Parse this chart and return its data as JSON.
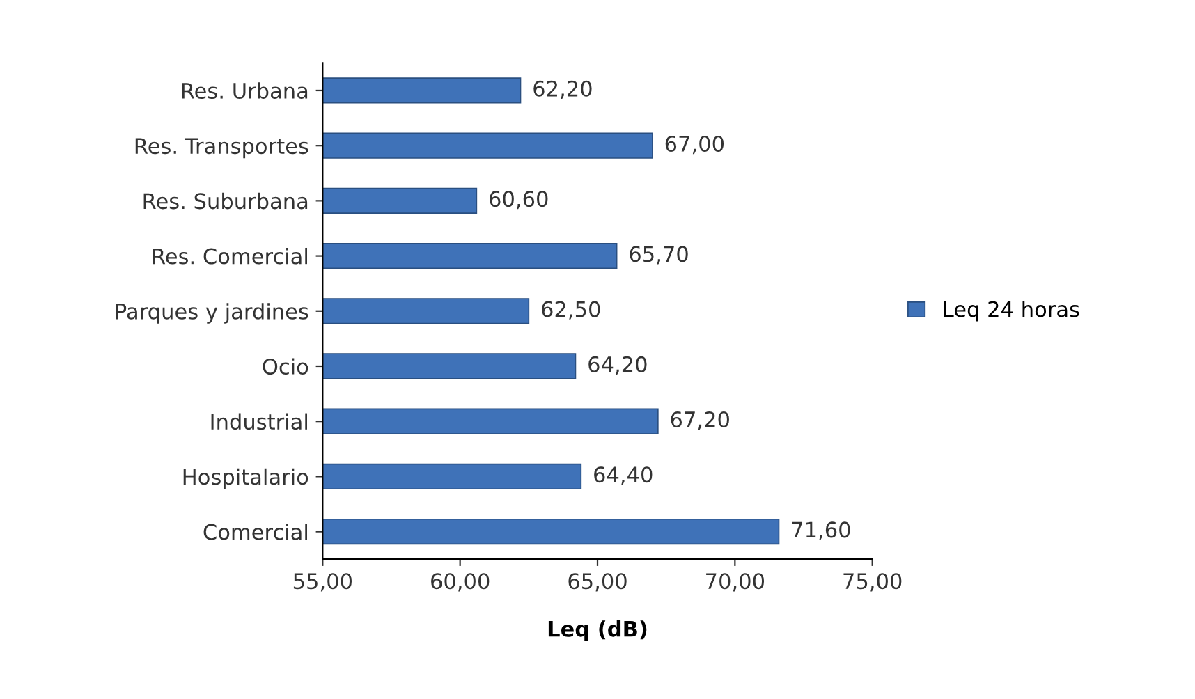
{
  "chart_data": {
    "type": "bar",
    "orientation": "horizontal",
    "xlabel": "Leq (dB)",
    "categories": [
      "Res. Urbana",
      "Res. Transportes",
      "Res. Suburbana",
      "Res. Comercial",
      "Parques y jardines",
      "Ocio",
      "Industrial",
      "Hospitalario",
      "Comercial"
    ],
    "series": [
      {
        "name": "Leq 24 horas",
        "color": "#3f72b8",
        "values": [
          62.2,
          67.0,
          60.6,
          65.7,
          62.5,
          64.2,
          67.2,
          64.4,
          71.6
        ],
        "value_labels": [
          "62,20",
          "67,00",
          "60,60",
          "65,70",
          "62,50",
          "64,20",
          "67,20",
          "64,40",
          "71,60"
        ]
      }
    ],
    "xlim": [
      55,
      75
    ],
    "xticks": [
      {
        "value": 55,
        "label": "55,00"
      },
      {
        "value": 60,
        "label": "60,00"
      },
      {
        "value": 65,
        "label": "65,00"
      },
      {
        "value": 70,
        "label": "70,00"
      },
      {
        "value": 75,
        "label": "75,00"
      }
    ],
    "grid": false,
    "legend": "right"
  }
}
